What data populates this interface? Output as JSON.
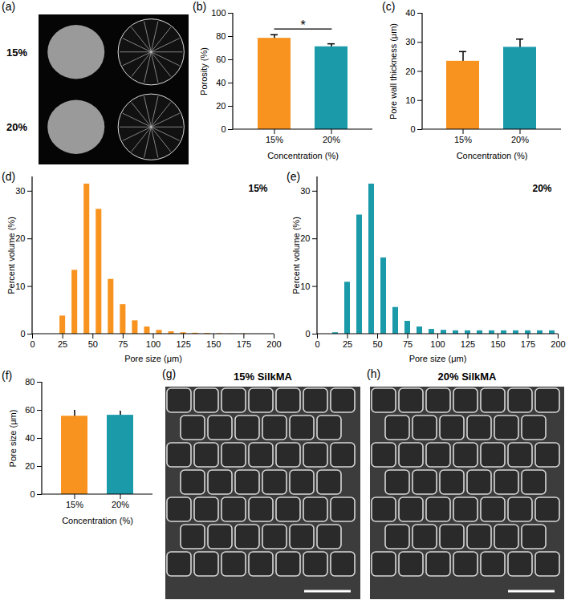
{
  "chart_data": [
    {
      "type": "image",
      "title": "(a)",
      "annotations": [
        "15%",
        "20%"
      ]
    },
    {
      "type": "bar",
      "title": "(b)",
      "categories": [
        "15%",
        "20%"
      ],
      "values": [
        78.5,
        71.2
      ],
      "errors": [
        3.0,
        2.5
      ],
      "colors": [
        "#f7931e",
        "#1b9aaa"
      ],
      "xlabel": "Concentration (%)",
      "ylabel": "Porosity (%)",
      "ylim": [
        0,
        100
      ],
      "yticks": [
        0,
        20,
        40,
        60,
        80,
        100
      ],
      "annotations": [
        "*"
      ]
    },
    {
      "type": "bar",
      "title": "(c)",
      "categories": [
        "15%",
        "20%"
      ],
      "values": [
        23.5,
        28.3
      ],
      "errors": [
        3.3,
        2.8
      ],
      "colors": [
        "#f7931e",
        "#1b9aaa"
      ],
      "xlabel": "Concentration (%)",
      "ylabel": "Pore wall thickness (μm)",
      "ylim": [
        0,
        40
      ],
      "yticks": [
        0,
        10,
        20,
        30,
        40
      ]
    },
    {
      "type": "histogram",
      "title": "(d)",
      "bins": [
        20,
        30,
        40,
        50,
        60,
        70,
        80,
        90,
        100,
        110,
        120,
        130,
        140,
        150,
        160,
        170,
        180,
        190,
        200
      ],
      "values": [
        3.8,
        13.4,
        31.5,
        26.2,
        11.5,
        6.2,
        2.8,
        1.5,
        0.8,
        0.5,
        0.3,
        0.2,
        0.15,
        0.1,
        0.05,
        0.05,
        0.02,
        0
      ],
      "color": "#f7931e",
      "xlabel": "Pore size (μm)",
      "ylabel": "Percent volume (%)",
      "xlim": [
        0,
        200
      ],
      "xticks": [
        0,
        25,
        50,
        75,
        100,
        125,
        150,
        175,
        200
      ],
      "ylim": [
        0,
        33
      ],
      "yticks": [
        0,
        10,
        20,
        30
      ],
      "annotations": [
        "15%"
      ]
    },
    {
      "type": "histogram",
      "title": "(e)",
      "bins": [
        10,
        20,
        30,
        40,
        50,
        60,
        70,
        80,
        90,
        100,
        110,
        120,
        130,
        140,
        150,
        160,
        170,
        180,
        190,
        200
      ],
      "values": [
        0.3,
        10.9,
        25.0,
        31.5,
        16.0,
        5.6,
        2.7,
        1.5,
        1.0,
        0.8,
        0.7,
        0.7,
        0.7,
        0.7,
        0.7,
        0.7,
        0.7,
        0.7,
        0.7
      ],
      "color": "#1b9aaa",
      "xlabel": "Pore size (μm)",
      "ylabel": "Percent volume (%)",
      "xlim": [
        0,
        200
      ],
      "xticks": [
        0,
        25,
        50,
        75,
        100,
        125,
        150,
        175,
        200
      ],
      "ylim": [
        0,
        33
      ],
      "yticks": [
        0,
        10,
        20,
        30
      ],
      "annotations": [
        "20%"
      ]
    },
    {
      "type": "bar",
      "title": "(f)",
      "categories": [
        "15%",
        "20%"
      ],
      "values": [
        55.8,
        56.5
      ],
      "errors": [
        4.0,
        2.8
      ],
      "colors": [
        "#f7931e",
        "#1b9aaa"
      ],
      "xlabel": "Concentration (%)",
      "ylabel": "Pore size (μm)",
      "ylim": [
        0,
        80
      ],
      "yticks": [
        0,
        20,
        40,
        60,
        80
      ]
    },
    {
      "type": "image",
      "title": "(g)",
      "annotations": [
        "15% SilkMA"
      ]
    },
    {
      "type": "image",
      "title": "(h)",
      "annotations": [
        "20% SilkMA"
      ]
    }
  ]
}
